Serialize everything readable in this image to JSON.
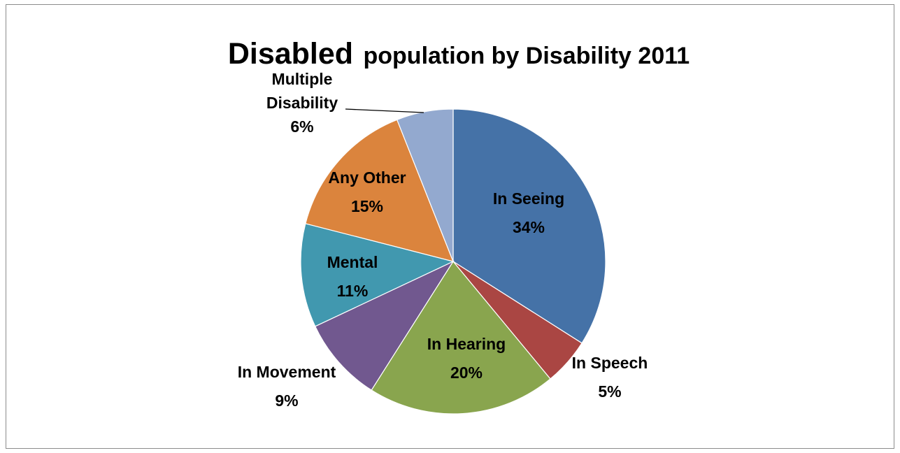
{
  "chart_data": {
    "type": "pie",
    "title_parts": [
      "Disabled",
      "population by Disability 2011"
    ],
    "start_angle_deg": 0,
    "direction": "clockwise",
    "slices": [
      {
        "label": "In Seeing",
        "value": 34,
        "label_text": "34%",
        "color": "#4572A7"
      },
      {
        "label": "In Speech",
        "value": 5,
        "label_text": "5%",
        "color": "#AA4643"
      },
      {
        "label": "In Hearing",
        "value": 20,
        "label_text": "20%",
        "color": "#89A54E"
      },
      {
        "label": "In Movement",
        "value": 9,
        "label_text": "9%",
        "color": "#71588F"
      },
      {
        "label": "Mental",
        "value": 11,
        "label_text": "11%",
        "color": "#4198AF"
      },
      {
        "label": "Any Other",
        "value": 15,
        "label_text": "15%",
        "color": "#DB843D"
      },
      {
        "label": "Multiple Disability",
        "value": 6,
        "label_text": "6%",
        "color": "#93A9CF"
      }
    ],
    "legend": "none",
    "data_labels": "category-and-percent"
  }
}
